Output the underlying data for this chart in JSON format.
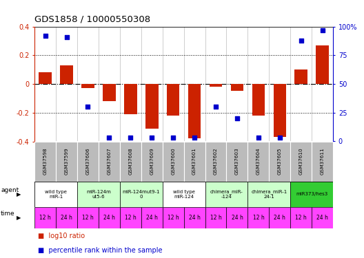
{
  "title": "GDS1858 / 10000550308",
  "gsm_labels": [
    "GSM37598",
    "GSM37599",
    "GSM37606",
    "GSM37607",
    "GSM37608",
    "GSM37609",
    "GSM37600",
    "GSM37601",
    "GSM37602",
    "GSM37603",
    "GSM37604",
    "GSM37605",
    "GSM37610",
    "GSM37611"
  ],
  "log10_ratio": [
    0.08,
    0.13,
    -0.03,
    -0.12,
    -0.21,
    -0.31,
    -0.22,
    -0.38,
    -0.02,
    -0.05,
    -0.22,
    -0.37,
    0.1,
    0.27
  ],
  "percentile_rank": [
    92,
    91,
    30,
    3,
    3,
    3,
    3,
    3,
    30,
    20,
    3,
    3,
    88,
    97
  ],
  "ylim_left": [
    -0.4,
    0.4
  ],
  "ylim_right": [
    0,
    100
  ],
  "bar_color": "#cc2200",
  "dot_color": "#0000cc",
  "yticks_left": [
    -0.4,
    -0.2,
    0.0,
    0.2,
    0.4
  ],
  "yticks_right": [
    0,
    25,
    50,
    75,
    100
  ],
  "agent_groups": [
    {
      "label": "wild type\nmiR-1",
      "cols": [
        0,
        1
      ],
      "color": "#ffffff"
    },
    {
      "label": "miR-124m\nut5-6",
      "cols": [
        2,
        3
      ],
      "color": "#ccffcc"
    },
    {
      "label": "miR-124mut9-1\n0",
      "cols": [
        4,
        5
      ],
      "color": "#ccffcc"
    },
    {
      "label": "wild type\nmiR-124",
      "cols": [
        6,
        7
      ],
      "color": "#ffffff"
    },
    {
      "label": "chimera_miR-\n-124",
      "cols": [
        8,
        9
      ],
      "color": "#ccffcc"
    },
    {
      "label": "chimera_miR-1\n24-1",
      "cols": [
        10,
        11
      ],
      "color": "#ccffcc"
    },
    {
      "label": "miR373/hes3",
      "cols": [
        12,
        13
      ],
      "color": "#33cc33"
    }
  ],
  "time_labels": [
    "12 h",
    "24 h",
    "12 h",
    "24 h",
    "12 h",
    "24 h",
    "12 h",
    "24 h",
    "12 h",
    "24 h",
    "12 h",
    "24 h",
    "12 h",
    "24 h"
  ],
  "time_color": "#ff44ff",
  "bg_color": "#ffffff",
  "gsm_bg_color": "#bbbbbb",
  "legend_red_label": "log10 ratio",
  "legend_blue_label": "percentile rank within the sample"
}
